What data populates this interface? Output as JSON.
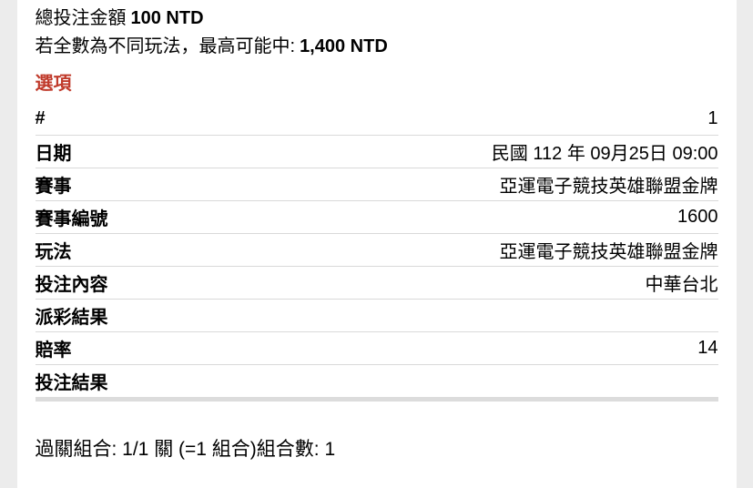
{
  "summary": {
    "total_label": "總投注金額",
    "total_value": "100 NTD",
    "max_win_label": "若全數為不同玩法，最高可能中:",
    "max_win_value": "1,400 NTD"
  },
  "section": {
    "title": "選項"
  },
  "details": {
    "rows": [
      {
        "label": "#",
        "value": "1"
      },
      {
        "label": "日期",
        "value": "民國 112 年 09月25日 09:00"
      },
      {
        "label": "賽事",
        "value": "亞運電子競技英雄聯盟金牌"
      },
      {
        "label": "賽事編號",
        "value": "1600"
      },
      {
        "label": "玩法",
        "value": "亞運電子競技英雄聯盟金牌"
      },
      {
        "label": "投注內容",
        "value": "中華台北"
      },
      {
        "label": "派彩結果",
        "value": ""
      },
      {
        "label": "賠率",
        "value": "14"
      },
      {
        "label": "投注結果",
        "value": ""
      }
    ]
  },
  "footer": {
    "combo_text": "過關組合: 1/1 關 (=1 組合)組合數: 1"
  },
  "colors": {
    "accent_red": "#c03a2b",
    "divider": "#d9d9d9",
    "bottom_bar": "#dcdcdc",
    "gutter": "#ececec",
    "text": "#000000",
    "background": "#ffffff"
  }
}
